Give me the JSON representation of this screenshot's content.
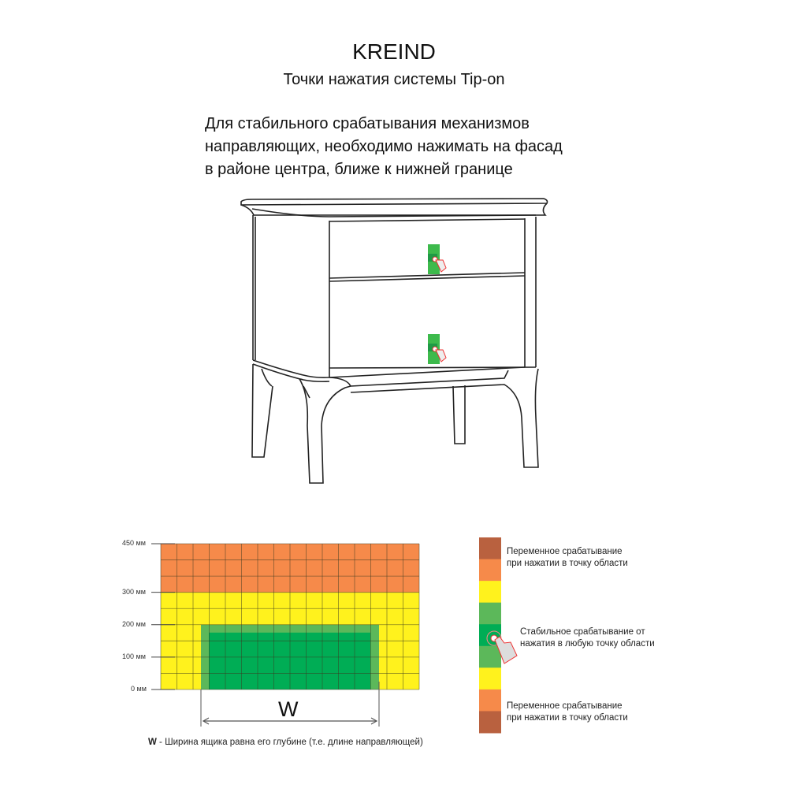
{
  "header": {
    "brand": "KREIND",
    "subtitle": "Точки нажатия системы Tip-on"
  },
  "description": {
    "lines": [
      "Для стабильного срабатывания механизмов",
      "направляющих, необходимо нажимать на фасад",
      "в районе центра, ближе к нижней границе"
    ]
  },
  "zone_diagram": {
    "y_labels": [
      "450 мм",
      "300 мм",
      "200 мм",
      "100 мм",
      "0 мм"
    ],
    "width_label": "W",
    "note_bold": "W",
    "note_text": " - Ширина ящика равна его глубине (т.е. длине направляющей)",
    "zones": {
      "variable_top_mm": [
        300,
        450
      ],
      "stable_max_mm": 200
    }
  },
  "legend": {
    "variable_1": [
      "Переменное срабатывание",
      "при нажатии в точку области"
    ],
    "stable": [
      "Стабильное срабатывание от",
      "нажатия в любую точку области"
    ],
    "variable_2": [
      "Переменное срабатывание",
      "при нажатии в точку области"
    ],
    "icon": "hand-press-icon"
  },
  "colors": {
    "brown": "#b9613f",
    "orange": "#f68a4a",
    "yellow": "#fff21d",
    "light_green": "#5cb85a",
    "dark_green": "#00ad55"
  }
}
